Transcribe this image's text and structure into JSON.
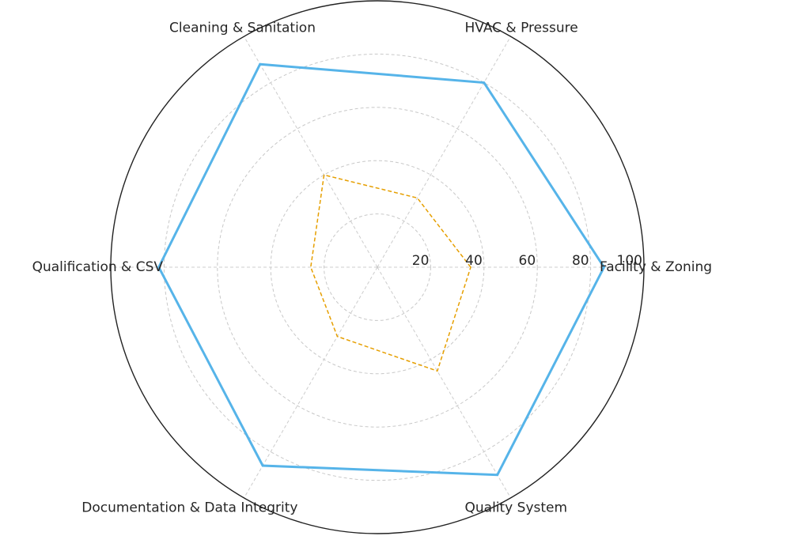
{
  "chart_data": {
    "type": "radar",
    "title": "",
    "axes": [
      "Facility & Zoning",
      "HVAC & Pressure",
      "Cleaning & Sanitation",
      "Qualification & CSV",
      "Documentation & Data Integrity",
      "Quality System"
    ],
    "rmax": 100,
    "radial_ticks": [
      "20",
      "40",
      "60",
      "80",
      "100"
    ],
    "radial_tick_values": [
      20,
      40,
      60,
      80,
      100
    ],
    "grid": true,
    "legend": "none",
    "series": [
      {
        "values": [
          85,
          80,
          88,
          82,
          86,
          90
        ],
        "color": "#56B4E9",
        "line_style": "solid"
      },
      {
        "values": [
          35,
          30,
          40,
          25,
          30,
          45
        ],
        "color": "#E69F00",
        "line_style": "dashed"
      }
    ]
  }
}
